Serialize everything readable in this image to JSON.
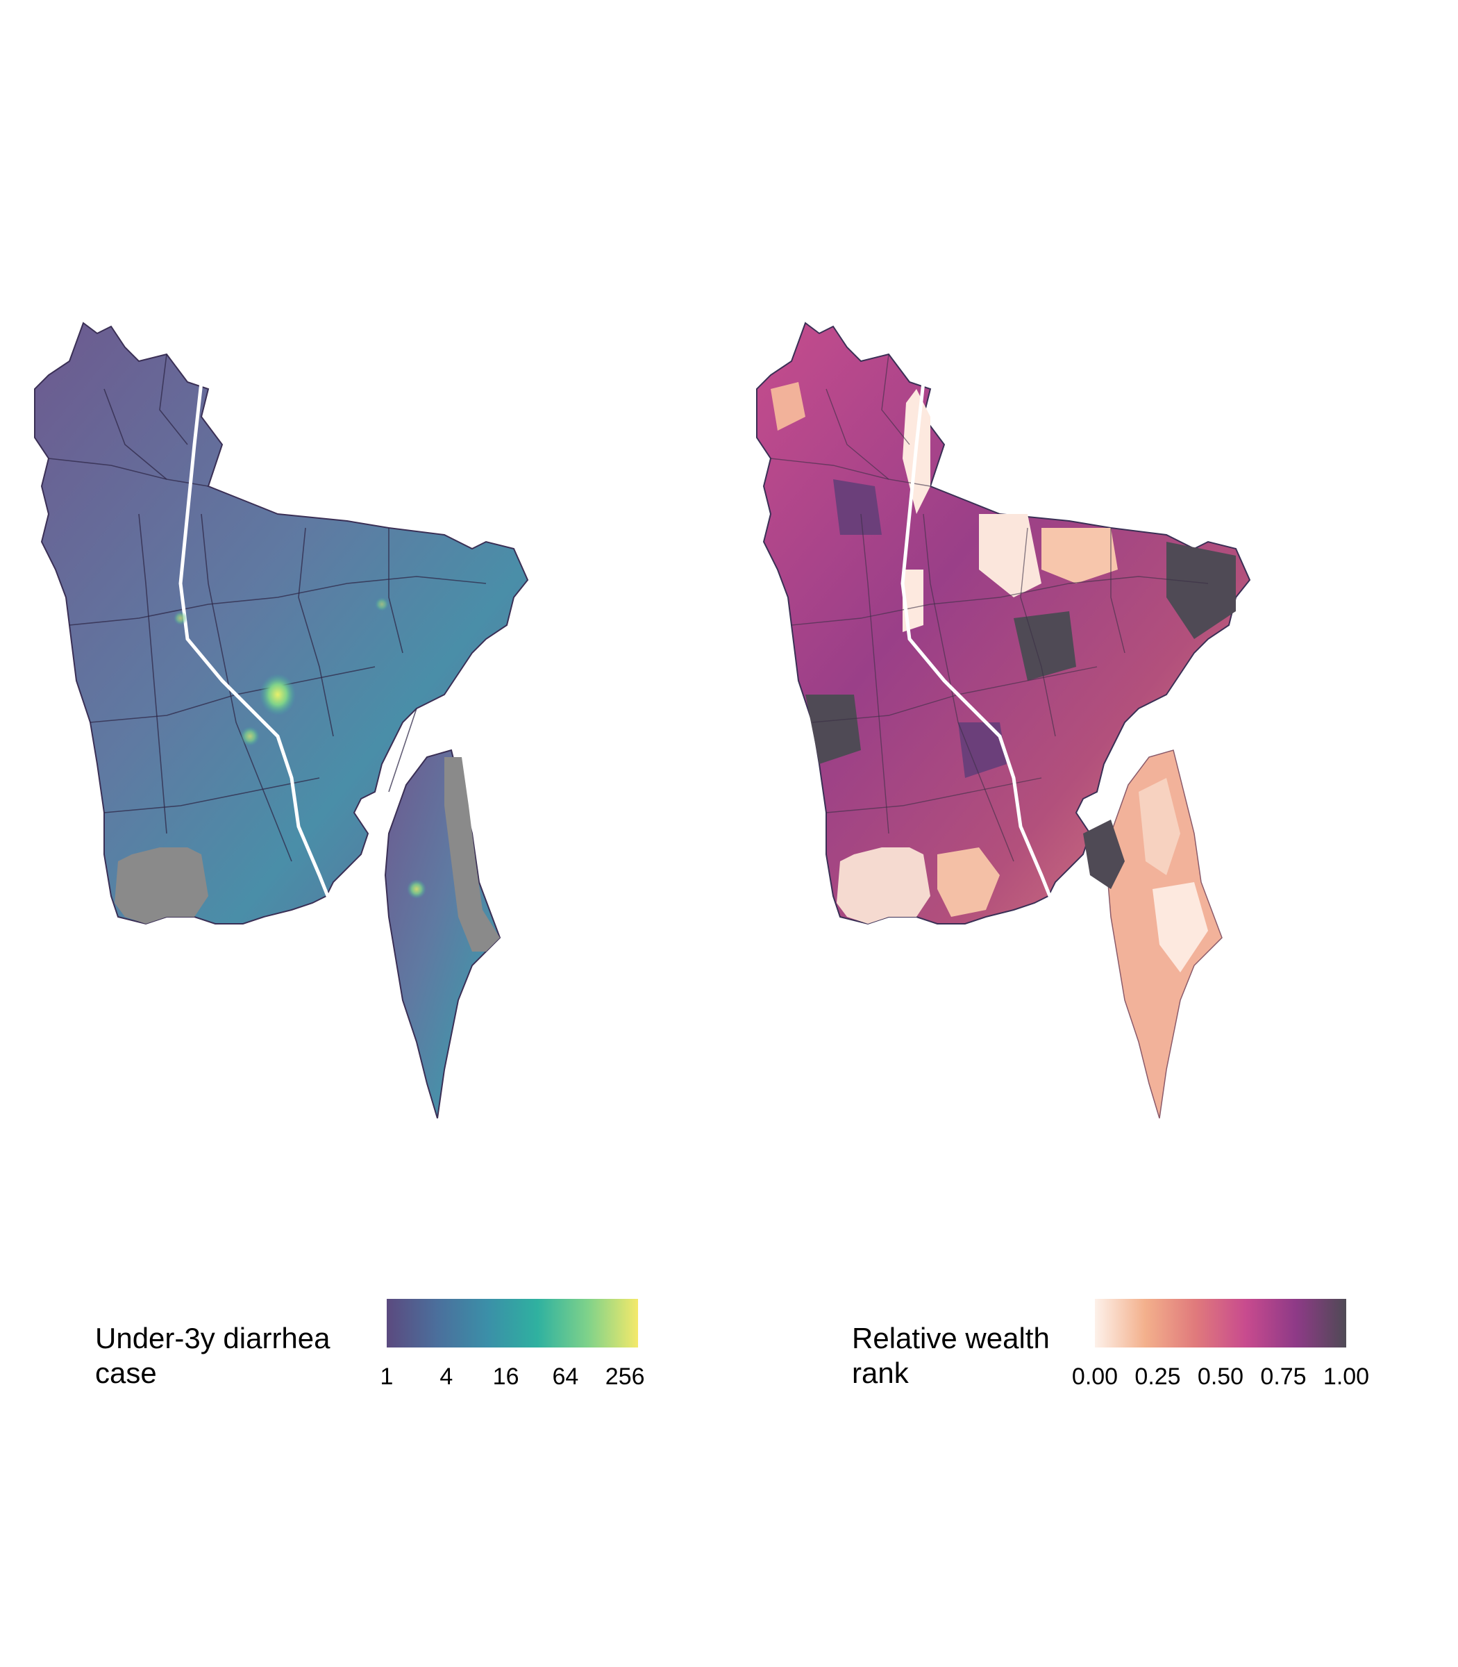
{
  "panels": [
    {
      "legend": {
        "title": "Under-3y diarrhea\ncase",
        "ticks": [
          "1",
          "4",
          "16",
          "64",
          "256"
        ],
        "tick_positions": [
          0.0,
          0.237,
          0.474,
          0.711,
          0.948
        ],
        "scale": "log",
        "palette": "viridis",
        "colors": [
          "#5b4a7f",
          "#4b6f9c",
          "#3b8fa8",
          "#2fb1a0",
          "#7fd28a",
          "#f4e96a"
        ]
      },
      "missing_color": "#8a8a8a"
    },
    {
      "legend": {
        "title": "Relative wealth\n rank",
        "ticks": [
          "0.00",
          "0.25",
          "0.50",
          "0.75",
          "1.00"
        ],
        "tick_positions": [
          0.0,
          0.25,
          0.5,
          0.75,
          1.0
        ],
        "scale": "linear",
        "palette": "magma-reversed",
        "colors": [
          "#fdf1ea",
          "#f3b08c",
          "#e07a7c",
          "#c84b8e",
          "#8e3a87",
          "#4f4a55"
        ]
      }
    }
  ]
}
